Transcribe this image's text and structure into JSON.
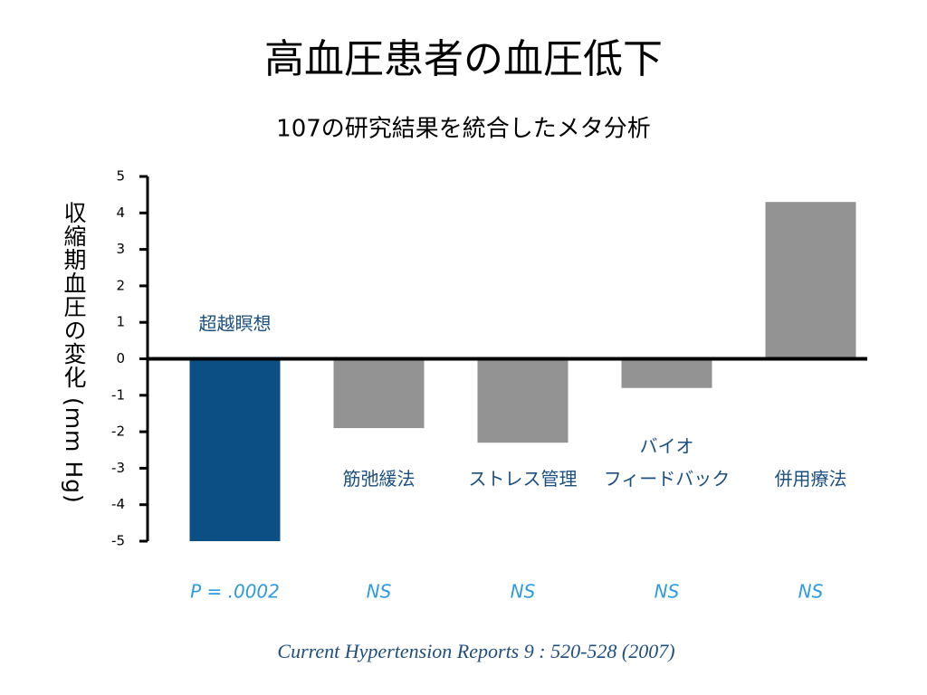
{
  "chart_data": {
    "type": "bar",
    "title": "高血圧患者の血圧低下",
    "subtitle": "107の研究結果を統合したメタ分析",
    "y_label": "収縮期血圧の変化 (mm Hg)",
    "categories": [
      "超越瞑想",
      "筋弛緩法",
      "ストレス管理",
      "バイオ\nフィードバック",
      "併用療法"
    ],
    "values": [
      -5.0,
      -1.9,
      -2.3,
      -0.8,
      4.3
    ],
    "colors": [
      "#0c4f85",
      "#939393",
      "#939393",
      "#939393",
      "#939393"
    ],
    "significance": [
      "P = .0002",
      "NS",
      "NS",
      "NS",
      "NS"
    ],
    "ylim": [
      -5,
      5
    ],
    "yticks": [
      -5,
      -4,
      -3,
      -2,
      -1,
      0,
      1,
      2,
      3,
      4,
      5
    ],
    "source": "Current Hypertension Reports 9 : 520-528 (2007)"
  }
}
